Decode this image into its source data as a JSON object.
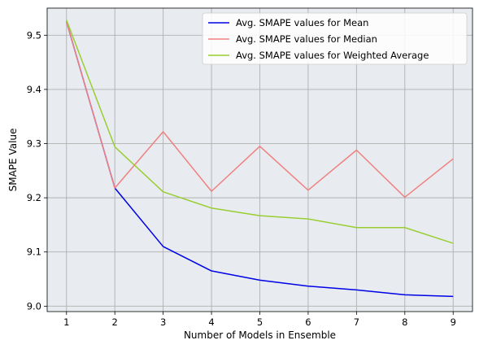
{
  "chart_data": {
    "type": "line",
    "title": "",
    "xlabel": "Number of Models in Ensemble",
    "ylabel": "SMAPE Value",
    "x": [
      1,
      2,
      3,
      4,
      5,
      6,
      7,
      8,
      9
    ],
    "xlim": [
      0.6,
      9.4
    ],
    "ylim": [
      8.99,
      9.55
    ],
    "xticks": [
      1,
      2,
      3,
      4,
      5,
      6,
      7,
      8,
      9
    ],
    "yticks": [
      9.0,
      9.1,
      9.2,
      9.3,
      9.4,
      9.5
    ],
    "ytick_labels": [
      "9.0",
      "9.1",
      "9.2",
      "9.3",
      "9.4",
      "9.5"
    ],
    "grid": true,
    "legend_position": "top-right",
    "background_color": "#e8ecf0",
    "series": [
      {
        "name": "Avg. SMAPE values for Mean",
        "color": "#0000e6",
        "values": [
          9.525,
          9.218,
          9.11,
          9.065,
          9.048,
          9.037,
          9.03,
          9.021,
          9.018
        ]
      },
      {
        "name": "Avg. SMAPE values for Median",
        "color": "#f08080",
        "values": [
          9.525,
          9.218,
          9.322,
          9.212,
          9.295,
          9.214,
          9.288,
          9.201,
          9.272
        ]
      },
      {
        "name": "Avg. SMAPE values for Weighted Average",
        "color": "#9acd32",
        "values": [
          9.528,
          9.294,
          9.211,
          9.181,
          9.167,
          9.161,
          9.145,
          9.145,
          9.116
        ]
      }
    ]
  }
}
